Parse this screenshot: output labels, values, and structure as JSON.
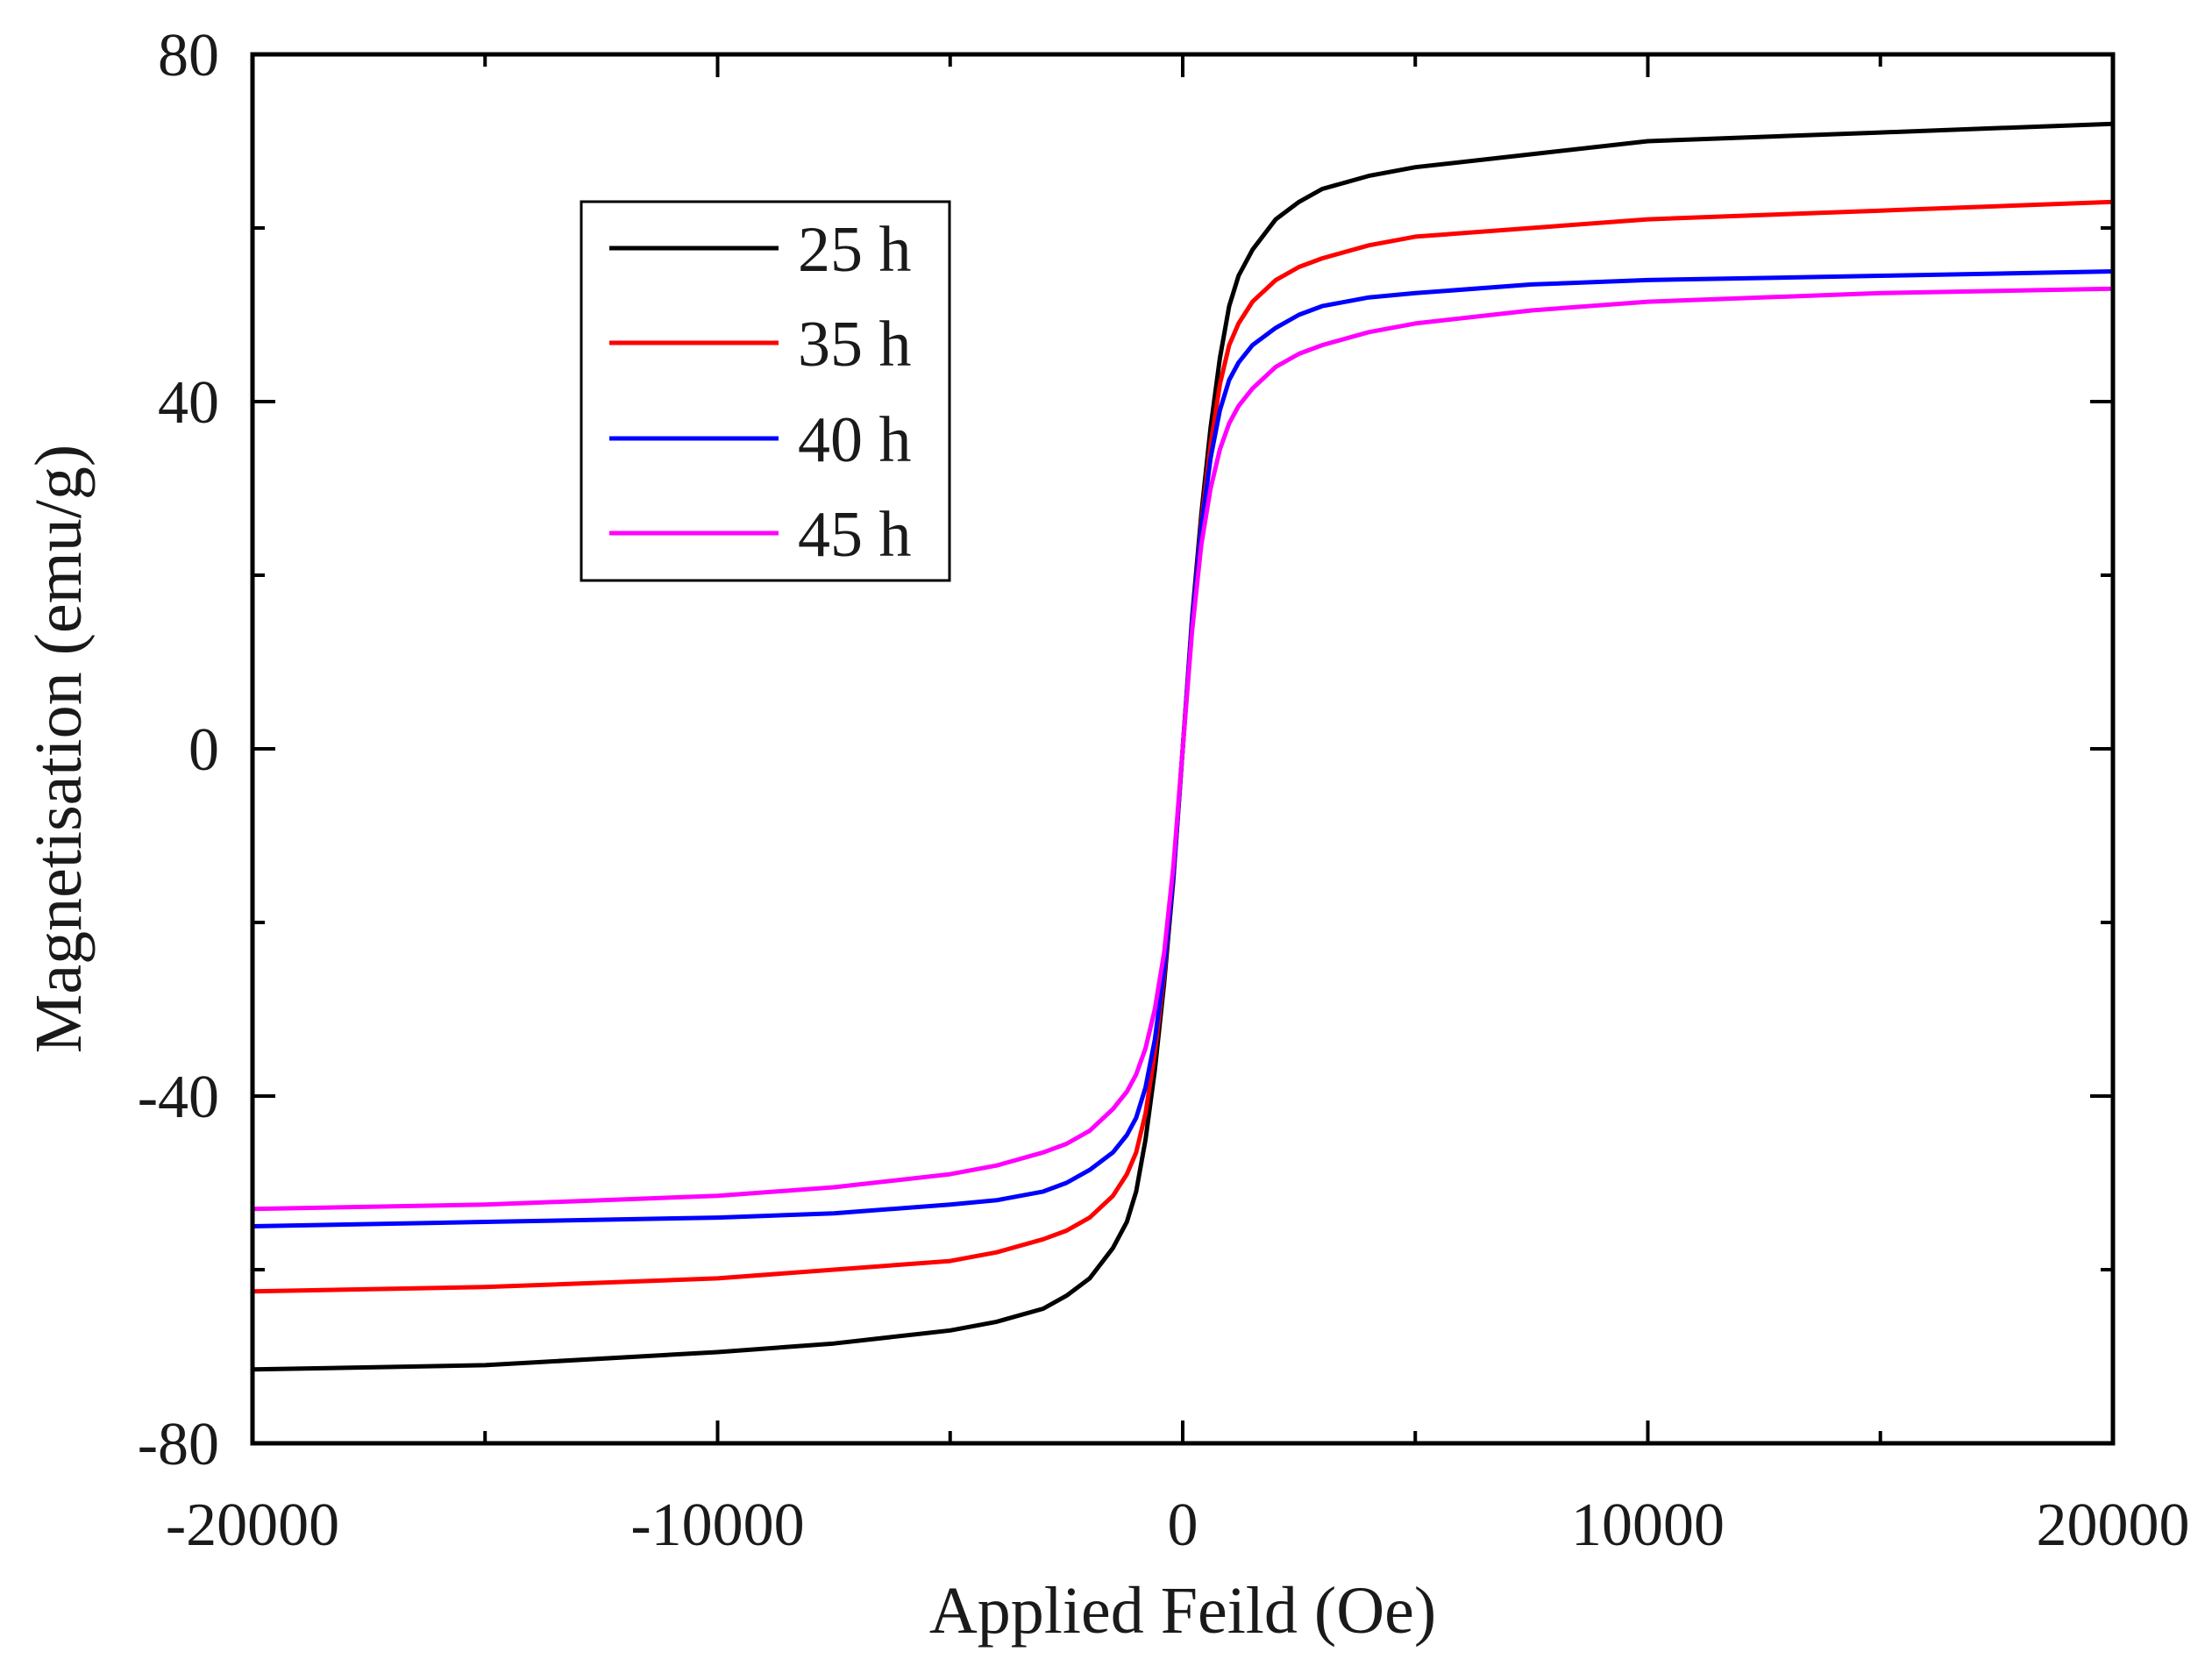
{
  "chart_data": {
    "type": "line",
    "title": "",
    "xlabel": "Applied Feild (Oe)",
    "ylabel": "Magnetisation (emu/g)",
    "xlim": [
      -20000,
      20000
    ],
    "ylim": [
      -80,
      80
    ],
    "xticks": [
      -20000,
      -10000,
      0,
      10000,
      20000
    ],
    "xtick_labels": [
      "-20000",
      "-10000",
      "0",
      "10000",
      "20000"
    ],
    "yticks": [
      -80,
      -40,
      0,
      40,
      80
    ],
    "ytick_labels": [
      "-80",
      "-40",
      "0",
      "40",
      "80"
    ],
    "grid": false,
    "legend_position": "top-left",
    "x": [
      -20000,
      -15000,
      -10000,
      -7500,
      -5000,
      -4000,
      -3000,
      -2500,
      -2000,
      -1500,
      -1200,
      -1000,
      -800,
      -600,
      -400,
      -200,
      0,
      200,
      400,
      600,
      800,
      1000,
      1200,
      1500,
      2000,
      2500,
      3000,
      4000,
      5000,
      7500,
      10000,
      15000,
      20000
    ],
    "series": [
      {
        "name": "25 h",
        "color": "#000000",
        "values": [
          -71.5,
          -71.0,
          -69.5,
          -68.5,
          -67.0,
          -66.0,
          -64.5,
          -63.0,
          -61.0,
          -57.5,
          -54.5,
          -51.0,
          -45.0,
          -37.0,
          -27.0,
          -15.0,
          0.0,
          15.0,
          27.0,
          37.0,
          45.0,
          51.0,
          54.5,
          57.5,
          61.0,
          63.0,
          64.5,
          66.0,
          67.0,
          68.5,
          70.0,
          71.0,
          72.0
        ]
      },
      {
        "name": "35 h",
        "color": "#ff0000",
        "values": [
          -62.5,
          -62.0,
          -61.0,
          -60.0,
          -59.0,
          -58.0,
          -56.5,
          -55.5,
          -54.0,
          -51.5,
          -49.0,
          -46.5,
          -42.0,
          -35.0,
          -26.0,
          -14.5,
          0.0,
          14.5,
          26.0,
          35.0,
          42.0,
          46.5,
          49.0,
          51.5,
          54.0,
          55.5,
          56.5,
          58.0,
          59.0,
          60.0,
          61.0,
          62.0,
          63.0
        ]
      },
      {
        "name": "40 h",
        "color": "#0000ff",
        "values": [
          -55.0,
          -54.5,
          -54.0,
          -53.5,
          -52.5,
          -52.0,
          -51.0,
          -50.0,
          -48.5,
          -46.5,
          -44.5,
          -42.5,
          -39.0,
          -33.5,
          -25.5,
          -14.5,
          0.0,
          14.5,
          25.5,
          33.5,
          39.0,
          42.5,
          44.5,
          46.5,
          48.5,
          50.0,
          51.0,
          52.0,
          52.5,
          53.5,
          54.0,
          54.5,
          55.0
        ]
      },
      {
        "name": "45 h",
        "color": "#ff00ff",
        "values": [
          -53.0,
          -52.5,
          -51.5,
          -50.5,
          -49.0,
          -48.0,
          -46.5,
          -45.5,
          -44.0,
          -41.5,
          -39.5,
          -37.5,
          -34.5,
          -30.0,
          -23.5,
          -13.5,
          0.0,
          13.5,
          23.5,
          30.0,
          34.5,
          37.5,
          39.5,
          41.5,
          44.0,
          45.5,
          46.5,
          48.0,
          49.0,
          50.5,
          51.5,
          52.5,
          53.0
        ]
      }
    ]
  }
}
